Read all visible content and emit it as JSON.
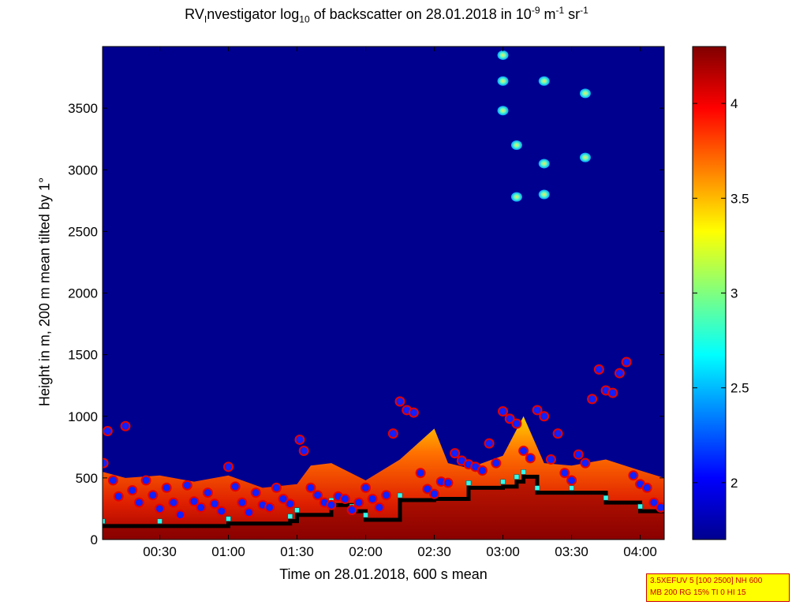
{
  "title": {
    "p1": "RV",
    "p1_sub": "I",
    "p2": "nvestigator log",
    "p2_sub": "10",
    "p3": " of backscatter on 28.01.2018 in 10",
    "p3_sup": "-9",
    "p4": " m",
    "p4_sup": "-1",
    "p5": " sr",
    "p5_sup": "-1"
  },
  "info_box": {
    "line1": "3.5XEFUV 5 [100 2500] NH 600",
    "line2": "MB 200 RG 15% TI 0 HI 15"
  },
  "chart_data": {
    "type": "heatmap",
    "xlabel": "Time on 28.01.2018, 600 s mean",
    "ylabel": "Height in m, 200 m mean tilted by 1°",
    "x_start_hours": 0.0833,
    "xlim_hours": [
      0.0833,
      4.175
    ],
    "ylim": [
      0,
      4000
    ],
    "x_ticks": [
      {
        "label": "00:30",
        "hours": 0.5
      },
      {
        "label": "01:00",
        "hours": 1.0
      },
      {
        "label": "01:30",
        "hours": 1.5
      },
      {
        "label": "02:00",
        "hours": 2.0
      },
      {
        "label": "02:30",
        "hours": 2.5
      },
      {
        "label": "03:00",
        "hours": 3.0
      },
      {
        "label": "03:30",
        "hours": 3.5
      },
      {
        "label": "04:00",
        "hours": 4.0
      }
    ],
    "y_ticks": [
      0,
      500,
      1000,
      1500,
      2000,
      2500,
      3000,
      3500
    ],
    "colorbar": {
      "range": [
        1.7,
        4.3
      ],
      "ticks": [
        2,
        2.5,
        3,
        3.5,
        4
      ],
      "tick_labels": [
        "2",
        "2.5",
        "3",
        "3.5",
        "4"
      ],
      "colormap": "jet"
    },
    "boundary_layer_top_m": {
      "x_hours": [
        0.0833,
        0.25,
        0.5,
        0.75,
        1.0,
        1.25,
        1.5,
        1.6,
        1.75,
        2.0,
        2.25,
        2.5,
        2.6,
        2.75,
        3.0,
        3.15,
        3.3,
        3.5,
        3.75,
        4.0,
        4.175
      ],
      "values": [
        550,
        500,
        520,
        470,
        520,
        420,
        450,
        600,
        620,
        480,
        650,
        900,
        620,
        580,
        680,
        1000,
        620,
        600,
        650,
        560,
        500
      ]
    },
    "cloud_base_m": {
      "x_hours": [
        0.0833,
        0.5,
        1.0,
        1.45,
        1.5,
        1.75,
        1.9,
        2.0,
        2.25,
        2.5,
        2.75,
        3.0,
        3.1,
        3.15,
        3.25,
        3.5,
        3.75,
        4.0,
        4.175
      ],
      "values": [
        110,
        110,
        130,
        150,
        200,
        280,
        230,
        160,
        320,
        330,
        420,
        430,
        470,
        510,
        380,
        380,
        300,
        230,
        240
      ]
    },
    "layer_detections_m": {
      "x_hours": [
        0.09,
        0.12,
        0.16,
        0.2,
        0.25,
        0.3,
        0.35,
        0.4,
        0.45,
        0.5,
        0.55,
        0.6,
        0.65,
        0.7,
        0.75,
        0.8,
        0.85,
        0.9,
        0.95,
        1.0,
        1.05,
        1.1,
        1.15,
        1.2,
        1.25,
        1.3,
        1.35,
        1.4,
        1.45,
        1.52,
        1.55,
        1.6,
        1.65,
        1.7,
        1.75,
        1.8,
        1.85,
        1.9,
        1.95,
        2.0,
        2.05,
        2.1,
        2.15,
        2.2,
        2.25,
        2.3,
        2.35,
        2.4,
        2.45,
        2.5,
        2.55,
        2.6,
        2.65,
        2.7,
        2.75,
        2.8,
        2.85,
        2.9,
        2.95,
        3.0,
        3.05,
        3.1,
        3.15,
        3.2,
        3.25,
        3.3,
        3.35,
        3.4,
        3.45,
        3.5,
        3.55,
        3.6,
        3.65,
        3.7,
        3.75,
        3.8,
        3.85,
        3.9,
        3.95,
        4.0,
        4.05,
        4.1,
        4.15
      ],
      "values": [
        620,
        880,
        480,
        350,
        920,
        400,
        300,
        480,
        360,
        250,
        420,
        300,
        200,
        440,
        310,
        260,
        380,
        290,
        230,
        590,
        430,
        300,
        220,
        380,
        280,
        260,
        420,
        330,
        290,
        810,
        720,
        420,
        360,
        300,
        280,
        350,
        330,
        240,
        300,
        420,
        330,
        260,
        360,
        860,
        1120,
        1050,
        1030,
        540,
        410,
        370,
        470,
        460,
        700,
        640,
        610,
        590,
        560,
        780,
        620,
        1040,
        980,
        940,
        720,
        660,
        1050,
        1000,
        650,
        860,
        540,
        480,
        690,
        620,
        1140,
        1380,
        1210,
        1190,
        1350,
        1440,
        520,
        450,
        420,
        300,
        260
      ]
    },
    "cloud_patches_m": [
      {
        "hours": 3.0,
        "values": [
          3930,
          3720,
          3480
        ]
      },
      {
        "hours": 3.1,
        "values": [
          3200,
          2780
        ]
      },
      {
        "hours": 3.3,
        "values": [
          3720,
          3050,
          2800
        ]
      },
      {
        "hours": 3.6,
        "values": [
          3620,
          3100
        ]
      }
    ]
  }
}
